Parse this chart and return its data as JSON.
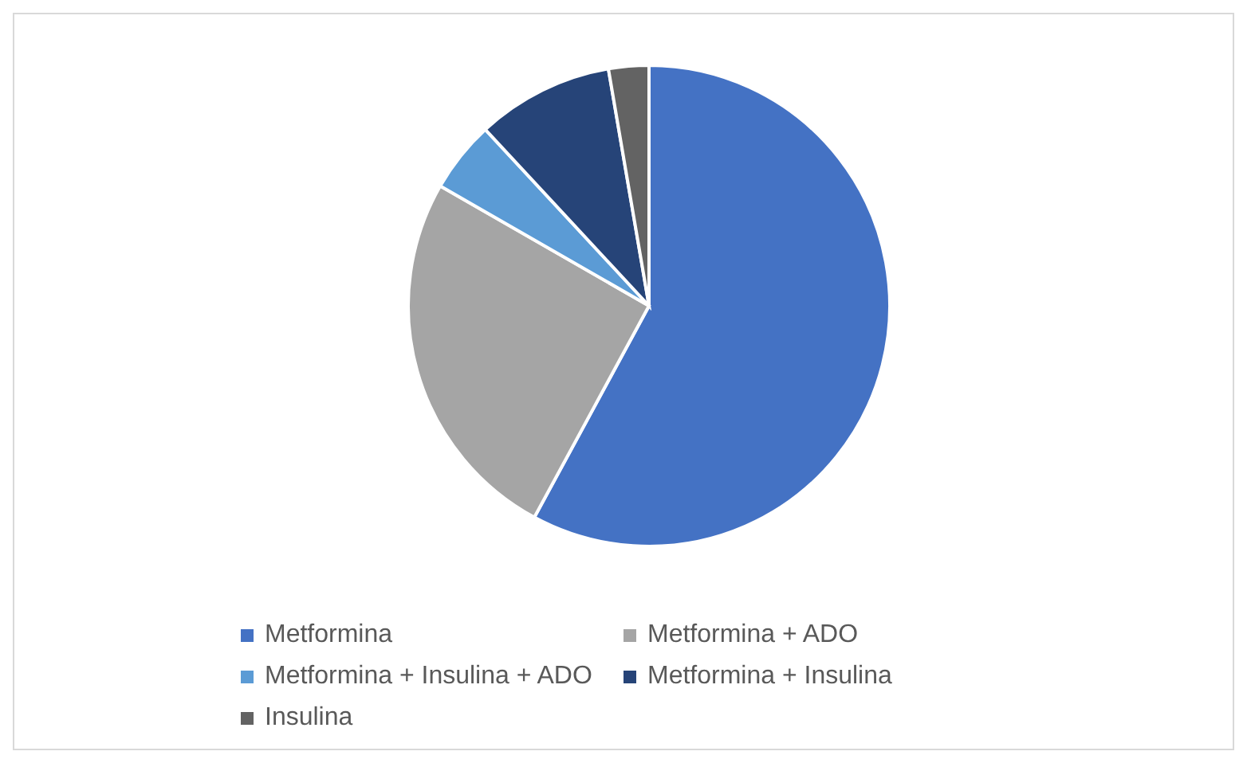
{
  "chart_data": {
    "type": "pie",
    "categories": [
      "Metformina",
      "Metformina + ADO",
      "Metformina + Insulina + ADO",
      "Metformina + Insulina",
      "Insulina"
    ],
    "values": [
      57.9,
      25.4,
      4.8,
      9.2,
      2.7
    ],
    "colors": [
      "#4472c4",
      "#a5a5a5",
      "#5b9bd5",
      "#264478",
      "#636363"
    ],
    "legend": "bottom"
  }
}
